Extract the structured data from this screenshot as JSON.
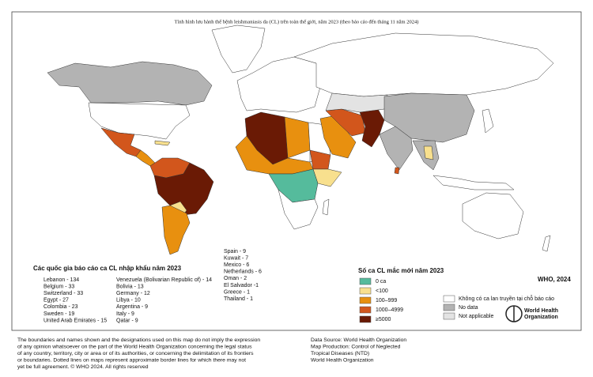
{
  "title": "Tình hình lưu hành thể bệnh leishmaniasis da (CL) trên toàn thế giới, năm 2023 (theo báo cáo đến tháng 11 năm 2024)",
  "imported": {
    "title": "Các quốc gia báo cáo ca CL nhập khẩu năm 2023",
    "columns": [
      [
        "Lebanon - 134",
        "Belgium - 33",
        "Switzerland - 33",
        "Egypt - 27",
        "Colombia - 23",
        "Sweden - 19",
        "United Arab Emirates - 15"
      ],
      [
        "Venezuela (Bolivarian Republic of) - 14",
        "Bolivia - 13",
        "Germany - 12",
        "Libya - 10",
        "Argentina - 9",
        "Italy - 9",
        "Qatar - 9"
      ],
      [
        "Spain - 9",
        "Kuwait - 7",
        "Mexico - 6",
        "Netherlands - 6",
        "Oman - 2",
        "El Salvador -1",
        "Greece - 1",
        "Thailand - 1"
      ]
    ]
  },
  "legend": {
    "title": "Số ca CL mắc mới năm 2023",
    "items": [
      {
        "label": "0 ca",
        "color": "#55bb9c"
      },
      {
        "label": "<100",
        "color": "#f8e08e"
      },
      {
        "label": "100–999",
        "color": "#e8900f"
      },
      {
        "label": "1000–4999",
        "color": "#d2561c"
      },
      {
        "label": "≥5000",
        "color": "#6a1a05"
      }
    ],
    "other": [
      {
        "label": "Không có ca lan truyền tại chỗ báo cáo",
        "color": "#ffffff"
      },
      {
        "label": "No data",
        "color": "#b3b3b3"
      },
      {
        "label": "Not applicable",
        "color": "#e3e3e3"
      }
    ]
  },
  "date": "WHO, 2024",
  "logo": [
    "World Health",
    "Organization"
  ],
  "disclaimer": [
    "The boundaries and names shown and the designations used on this map do not imply the expression",
    "of any opinion whatsoever on the part of the World Health Organization concerning the legal status",
    "of any country, territory, city or area or of its authorities, or concerning the delimitation of its frontiers",
    "or boundaries. Dotted lines on maps represent approximate border lines for which there may not",
    "yet be full agreement. © WHO 2024. All rights reserved"
  ],
  "source": [
    "Data Source: World Health Organization",
    "Map Production: Control of Neglected",
    "Tropical Diseases (NTD)",
    "World Health Organization"
  ]
}
